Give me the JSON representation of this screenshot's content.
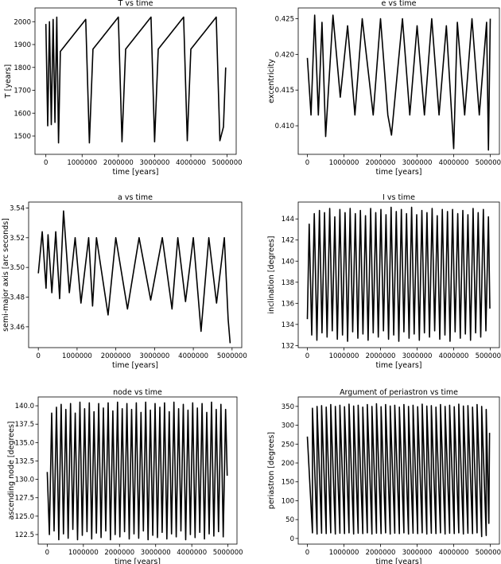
{
  "chart_data": [
    {
      "type": "line",
      "title": "T vs time",
      "xlabel": "time [years]",
      "ylabel": "T [years]",
      "xlim": [
        -300000,
        5250000
      ],
      "ylim": [
        1420,
        2060
      ],
      "xticks": [
        0,
        1000000,
        2000000,
        3000000,
        4000000,
        5000000
      ],
      "xtick_labels": [
        "0",
        "1000000",
        "2000000",
        "3000000",
        "4000000",
        "5000000"
      ],
      "yticks": [
        1500,
        1600,
        1700,
        1800,
        1900,
        2000
      ],
      "ytick_labels": [
        "1500",
        "1600",
        "1700",
        "1800",
        "1900",
        "2000"
      ],
      "grid": false,
      "color": "#000000",
      "series": [
        {
          "x": [
            0,
            50000,
            100000,
            150000,
            200000,
            250000,
            300000,
            350000,
            400000,
            500000,
            600000,
            700000,
            800000,
            900000,
            1000000,
            1100000,
            1200000,
            1300000,
            1400000,
            1500000,
            1600000,
            1700000,
            1800000,
            1900000,
            2000000,
            2100000,
            2200000,
            2300000,
            2400000,
            2500000,
            2600000,
            2700000,
            2800000,
            2900000,
            3000000,
            3100000,
            3200000,
            3300000,
            3400000,
            3500000,
            3600000,
            3700000,
            3800000,
            3900000,
            4000000,
            4100000,
            4200000,
            4300000,
            4400000,
            4500000,
            4600000,
            4700000,
            4800000,
            4900000,
            4960000
          ],
          "y": [
            1990,
            1545,
            2000,
            1550,
            2010,
            1560,
            2020,
            1470,
            1870,
            1890,
            1910,
            1930,
            1950,
            1970,
            1990,
            2010,
            1470,
            1880,
            1900,
            1920,
            1940,
            1960,
            1980,
            2000,
            2020,
            1475,
            1880,
            1900,
            1920,
            1940,
            1960,
            1980,
            2000,
            2020,
            1475,
            1880,
            1900,
            1920,
            1940,
            1960,
            1980,
            2000,
            2020,
            1480,
            1880,
            1900,
            1920,
            1940,
            1960,
            1980,
            2000,
            2020,
            1480,
            1540,
            1800
          ]
        }
      ]
    },
    {
      "type": "line",
      "title": "e vs time",
      "xlabel": "time [years]",
      "ylabel": "excentricity",
      "xlim": [
        -250000,
        5250000
      ],
      "ylim": [
        0.406,
        0.4265
      ],
      "xticks": [
        0,
        1000000,
        2000000,
        3000000,
        4000000,
        5000000
      ],
      "xtick_labels": [
        "0",
        "1000000",
        "2000000",
        "3000000",
        "4000000",
        "5000000"
      ],
      "yticks": [
        0.41,
        0.415,
        0.42,
        0.425
      ],
      "ytick_labels": [
        "0.410",
        "0.415",
        "0.420",
        "0.425"
      ],
      "grid": false,
      "color": "#000000",
      "series": [
        {
          "x": [
            0,
            100000,
            200000,
            300000,
            400000,
            500000,
            700000,
            900000,
            1100000,
            1300000,
            1500000,
            1800000,
            2000000,
            2200000,
            2300000,
            2600000,
            2800000,
            3000000,
            3200000,
            3400000,
            3600000,
            3800000,
            4000000,
            4100000,
            4300000,
            4500000,
            4700000,
            4900000,
            4950000,
            5000000
          ],
          "y": [
            0.4195,
            0.4115,
            0.4255,
            0.4115,
            0.4245,
            0.4085,
            0.4255,
            0.414,
            0.424,
            0.4115,
            0.425,
            0.4115,
            0.425,
            0.4115,
            0.4087,
            0.425,
            0.4115,
            0.424,
            0.4115,
            0.425,
            0.4115,
            0.424,
            0.4068,
            0.4245,
            0.4115,
            0.425,
            0.4115,
            0.4245,
            0.4066,
            0.425
          ]
        }
      ]
    },
    {
      "type": "line",
      "title": "a vs time",
      "xlabel": "time [years]",
      "ylabel": "semi-major axis [arc seconds]",
      "xlim": [
        -250000,
        5250000
      ],
      "ylim": [
        3.446,
        3.544
      ],
      "xticks": [
        0,
        1000000,
        2000000,
        3000000,
        4000000,
        5000000
      ],
      "xtick_labels": [
        "0",
        "1000000",
        "2000000",
        "3000000",
        "4000000",
        "5000000"
      ],
      "yticks": [
        3.46,
        3.48,
        3.5,
        3.52,
        3.54
      ],
      "ytick_labels": [
        "3.46",
        "3.48",
        "3.50",
        "3.52",
        "3.54"
      ],
      "grid": false,
      "color": "#000000",
      "series": [
        {
          "x": [
            0,
            100000,
            200000,
            250000,
            350000,
            450000,
            550000,
            650000,
            800000,
            950000,
            1100000,
            1300000,
            1400000,
            1500000,
            1800000,
            2000000,
            2300000,
            2600000,
            2900000,
            3200000,
            3450000,
            3600000,
            3800000,
            4000000,
            4200000,
            4400000,
            4600000,
            4800000,
            4900000,
            4950000
          ],
          "y": [
            3.496,
            3.524,
            3.486,
            3.522,
            3.483,
            3.524,
            3.479,
            3.538,
            3.483,
            3.52,
            3.476,
            3.52,
            3.474,
            3.52,
            3.468,
            3.52,
            3.472,
            3.52,
            3.478,
            3.52,
            3.472,
            3.52,
            3.477,
            3.52,
            3.457,
            3.52,
            3.476,
            3.52,
            3.465,
            3.449
          ]
        }
      ]
    },
    {
      "type": "line",
      "title": "I vs time",
      "xlabel": "time [years]",
      "ylabel": "inclination [degrees]",
      "xlim": [
        -250000,
        5250000
      ],
      "ylim": [
        131.8,
        145.6
      ],
      "xticks": [
        0,
        1000000,
        2000000,
        3000000,
        4000000,
        5000000
      ],
      "xtick_labels": [
        "0",
        "1000000",
        "2000000",
        "3000000",
        "4000000",
        "5000000"
      ],
      "yticks": [
        132,
        134,
        136,
        138,
        140,
        142,
        144
      ],
      "ytick_labels": [
        "132",
        "134",
        "136",
        "138",
        "140",
        "142",
        "144"
      ],
      "grid": false,
      "color": "#000000",
      "series": [
        {
          "x": [
            0,
            50000,
            120000,
            190000,
            260000,
            330000,
            400000,
            470000,
            540000,
            610000,
            680000,
            750000,
            820000,
            890000,
            960000,
            1030000,
            1100000,
            1170000,
            1240000,
            1310000,
            1380000,
            1450000,
            1520000,
            1590000,
            1660000,
            1730000,
            1800000,
            1870000,
            1940000,
            2010000,
            2080000,
            2150000,
            2220000,
            2290000,
            2360000,
            2430000,
            2500000,
            2570000,
            2640000,
            2710000,
            2780000,
            2850000,
            2920000,
            2990000,
            3060000,
            3130000,
            3200000,
            3270000,
            3340000,
            3410000,
            3480000,
            3550000,
            3620000,
            3690000,
            3760000,
            3830000,
            3900000,
            3970000,
            4040000,
            4110000,
            4180000,
            4250000,
            4320000,
            4390000,
            4460000,
            4530000,
            4600000,
            4670000,
            4740000,
            4810000,
            4880000,
            4950000,
            4990000
          ],
          "y": [
            134.5,
            143.5,
            133.0,
            144.5,
            132.5,
            144.8,
            133.2,
            144.6,
            132.8,
            145.0,
            133.4,
            144.2,
            132.6,
            144.9,
            133.0,
            144.6,
            132.4,
            145.0,
            133.3,
            144.5,
            132.7,
            144.8,
            133.1,
            144.3,
            132.5,
            145.0,
            133.2,
            144.6,
            132.8,
            144.9,
            133.4,
            144.4,
            132.6,
            145.1,
            133.0,
            144.7,
            132.4,
            144.9,
            133.3,
            144.5,
            132.7,
            145.1,
            133.1,
            144.4,
            132.5,
            144.8,
            133.2,
            144.6,
            132.8,
            145.0,
            133.4,
            144.3,
            132.6,
            144.9,
            133.0,
            144.7,
            132.4,
            144.9,
            133.3,
            144.5,
            132.7,
            144.8,
            133.1,
            144.4,
            132.5,
            145.0,
            133.2,
            144.6,
            132.8,
            144.9,
            133.4,
            144.2,
            135.5
          ]
        }
      ]
    },
    {
      "type": "line",
      "title": "node vs time",
      "xlabel": "time [years]",
      "ylabel": "ascending node [degrees]",
      "xlim": [
        -250000,
        5250000
      ],
      "ylim": [
        121.2,
        141.2
      ],
      "xticks": [
        0,
        1000000,
        2000000,
        3000000,
        4000000,
        5000000
      ],
      "xtick_labels": [
        "0",
        "1000000",
        "2000000",
        "3000000",
        "4000000",
        "5000000"
      ],
      "yticks": [
        122.5,
        125.0,
        127.5,
        130.0,
        132.5,
        135.0,
        137.5,
        140.0
      ],
      "ytick_labels": [
        "122.5",
        "125.0",
        "127.5",
        "130.0",
        "132.5",
        "135.0",
        "137.5",
        "140.0"
      ],
      "grid": false,
      "color": "#000000",
      "series": [
        {
          "x": [
            0,
            60000,
            125000,
            190000,
            255000,
            320000,
            385000,
            450000,
            515000,
            580000,
            645000,
            710000,
            775000,
            840000,
            905000,
            970000,
            1035000,
            1100000,
            1165000,
            1230000,
            1295000,
            1360000,
            1425000,
            1490000,
            1555000,
            1620000,
            1685000,
            1750000,
            1815000,
            1880000,
            1945000,
            2010000,
            2075000,
            2140000,
            2205000,
            2270000,
            2335000,
            2400000,
            2465000,
            2530000,
            2595000,
            2660000,
            2725000,
            2790000,
            2855000,
            2920000,
            2985000,
            3050000,
            3115000,
            3180000,
            3245000,
            3310000,
            3375000,
            3440000,
            3505000,
            3570000,
            3635000,
            3700000,
            3765000,
            3830000,
            3895000,
            3960000,
            4025000,
            4090000,
            4155000,
            4220000,
            4285000,
            4350000,
            4415000,
            4480000,
            4545000,
            4610000,
            4675000,
            4740000,
            4805000,
            4870000,
            4935000,
            4980000
          ],
          "y": [
            131.0,
            122.5,
            139.0,
            123.0,
            139.8,
            121.8,
            140.2,
            122.6,
            139.5,
            122.0,
            140.3,
            123.2,
            139.0,
            121.8,
            140.5,
            122.4,
            139.6,
            122.9,
            140.4,
            121.9,
            139.2,
            122.7,
            140.3,
            122.1,
            139.7,
            123.0,
            140.4,
            121.8,
            139.3,
            122.5,
            140.5,
            122.2,
            139.6,
            122.9,
            140.3,
            121.9,
            139.5,
            122.6,
            140.4,
            122.0,
            139.1,
            123.0,
            140.5,
            121.8,
            139.4,
            122.4,
            140.3,
            122.1,
            139.8,
            122.8,
            140.4,
            121.9,
            139.2,
            122.6,
            140.5,
            122.2,
            139.6,
            123.0,
            140.2,
            121.8,
            139.4,
            122.5,
            140.4,
            122.1,
            139.7,
            122.8,
            140.3,
            121.9,
            139.1,
            122.6,
            140.5,
            122.3,
            139.5,
            122.9,
            140.2,
            122.2,
            139.5,
            130.5
          ]
        }
      ]
    },
    {
      "type": "line",
      "title": "Argument of periastron vs time",
      "xlabel": "time [years]",
      "ylabel": "periastron [degrees]",
      "xlim": [
        -250000,
        5250000
      ],
      "ylim": [
        -15,
        375
      ],
      "xticks": [
        0,
        1000000,
        2000000,
        3000000,
        4000000,
        5000000
      ],
      "xtick_labels": [
        "0",
        "1000000",
        "2000000",
        "3000000",
        "4000000",
        "5000000"
      ],
      "yticks": [
        0,
        50,
        100,
        150,
        200,
        250,
        300,
        350
      ],
      "ytick_labels": [
        "0",
        "50",
        "100",
        "150",
        "200",
        "250",
        "300",
        "350"
      ],
      "grid": false,
      "color": "#000000",
      "series": [
        {
          "x": [
            0,
            140000,
            140001,
            265000,
            265001,
            390000,
            390001,
            515000,
            515001,
            640000,
            640001,
            765000,
            765001,
            890000,
            890001,
            1015000,
            1015001,
            1140000,
            1140001,
            1265000,
            1265001,
            1390000,
            1390001,
            1515000,
            1515001,
            1640000,
            1640001,
            1765000,
            1765001,
            1890000,
            1890001,
            2015000,
            2015001,
            2140000,
            2140001,
            2265000,
            2265001,
            2390000,
            2390001,
            2515000,
            2515001,
            2640000,
            2640001,
            2765000,
            2765001,
            2890000,
            2890001,
            3015000,
            3015001,
            3140000,
            3140001,
            3265000,
            3265001,
            3390000,
            3390001,
            3515000,
            3515001,
            3640000,
            3640001,
            3765000,
            3765001,
            3890000,
            3890001,
            4015000,
            4015001,
            4140000,
            4140001,
            4265000,
            4265001,
            4390000,
            4390001,
            4515000,
            4515001,
            4640000,
            4640001,
            4765000,
            4765001,
            4890000,
            4890001,
            4960000,
            4980000
          ],
          "y": [
            270,
            15,
            345,
            12,
            350,
            14,
            352,
            13,
            348,
            15,
            355,
            12,
            350,
            14,
            353,
            13,
            349,
            15,
            356,
            12,
            351,
            14,
            353,
            13,
            348,
            15,
            355,
            12,
            350,
            14,
            357,
            13,
            349,
            15,
            355,
            12,
            351,
            14,
            353,
            13,
            348,
            15,
            355,
            12,
            350,
            14,
            353,
            13,
            349,
            15,
            356,
            12,
            351,
            14,
            352,
            13,
            348,
            15,
            355,
            12,
            350,
            14,
            353,
            13,
            349,
            15,
            356,
            12,
            351,
            14,
            352,
            13,
            348,
            15,
            355,
            5,
            350,
            8,
            342,
            40,
            280
          ]
        }
      ]
    }
  ]
}
